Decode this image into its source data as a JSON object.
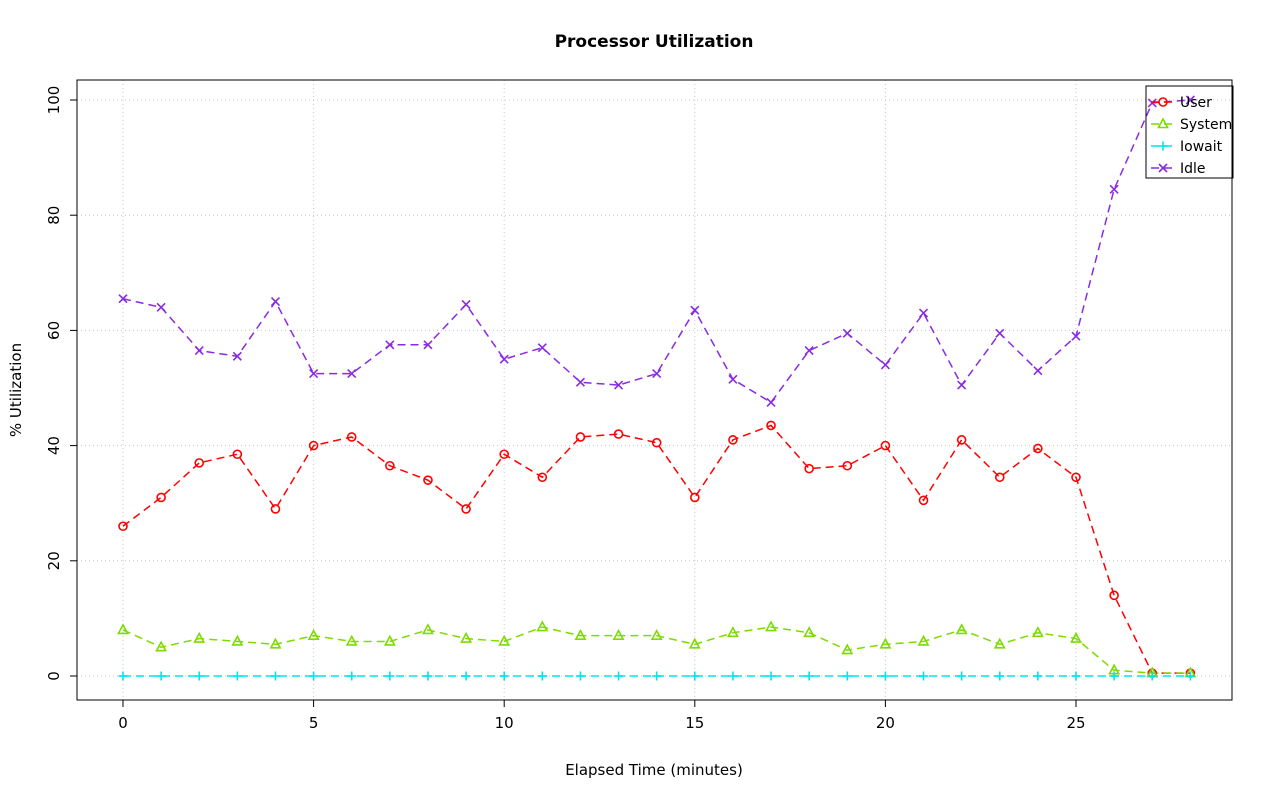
{
  "title": "Processor Utilization",
  "chart_data": {
    "type": "line",
    "title": "Processor Utilization",
    "xlabel": "Elapsed Time (minutes)",
    "ylabel": "% Utilization",
    "xlim": [
      0,
      28
    ],
    "ylim": [
      0,
      100
    ],
    "xticks": [
      0,
      5,
      10,
      15,
      20,
      25
    ],
    "yticks": [
      0,
      20,
      40,
      60,
      80,
      100
    ],
    "grid": true,
    "grid_style": "dotted",
    "line_style": "dashed",
    "legend_position": "top-right",
    "x": [
      0,
      1,
      2,
      3,
      4,
      5,
      6,
      7,
      8,
      9,
      10,
      11,
      12,
      13,
      14,
      15,
      16,
      17,
      18,
      19,
      20,
      21,
      22,
      23,
      24,
      25,
      26,
      27,
      28
    ],
    "series": [
      {
        "name": "User",
        "color": "#FF0000",
        "marker": "circle",
        "values": [
          26,
          31,
          37,
          38.5,
          29,
          40,
          41.5,
          36.5,
          34,
          29,
          38.5,
          34.5,
          41.5,
          42,
          40.5,
          31,
          41,
          43.5,
          36,
          36.5,
          40,
          30.5,
          41,
          34.5,
          39.5,
          34.5,
          14,
          0.5,
          0.5
        ]
      },
      {
        "name": "System",
        "color": "#7CDB00",
        "marker": "triangle",
        "values": [
          8,
          5,
          6.5,
          6,
          5.5,
          7,
          6,
          6,
          8,
          6.5,
          6,
          8.5,
          7,
          7,
          7,
          5.5,
          7.5,
          8.5,
          7.5,
          4.5,
          5.5,
          6,
          8,
          5.5,
          7.5,
          6.5,
          1,
          0.5,
          0.5
        ]
      },
      {
        "name": "Iowait",
        "color": "#00E5EE",
        "marker": "plus",
        "values": [
          0,
          0,
          0,
          0,
          0,
          0,
          0,
          0,
          0,
          0,
          0,
          0,
          0,
          0,
          0,
          0,
          0,
          0,
          0,
          0,
          0,
          0,
          0,
          0,
          0,
          0,
          0,
          0,
          0
        ]
      },
      {
        "name": "Idle",
        "color": "#8A2BE2",
        "marker": "x",
        "values": [
          65.5,
          64,
          56.5,
          55.5,
          65,
          52.5,
          52.5,
          57.5,
          57.5,
          64.5,
          55,
          57,
          51,
          50.5,
          52.5,
          63.5,
          51.5,
          47.5,
          56.5,
          59.5,
          54,
          63,
          50.5,
          59.5,
          53,
          59,
          84.5,
          99.5,
          100
        ]
      }
    ]
  }
}
